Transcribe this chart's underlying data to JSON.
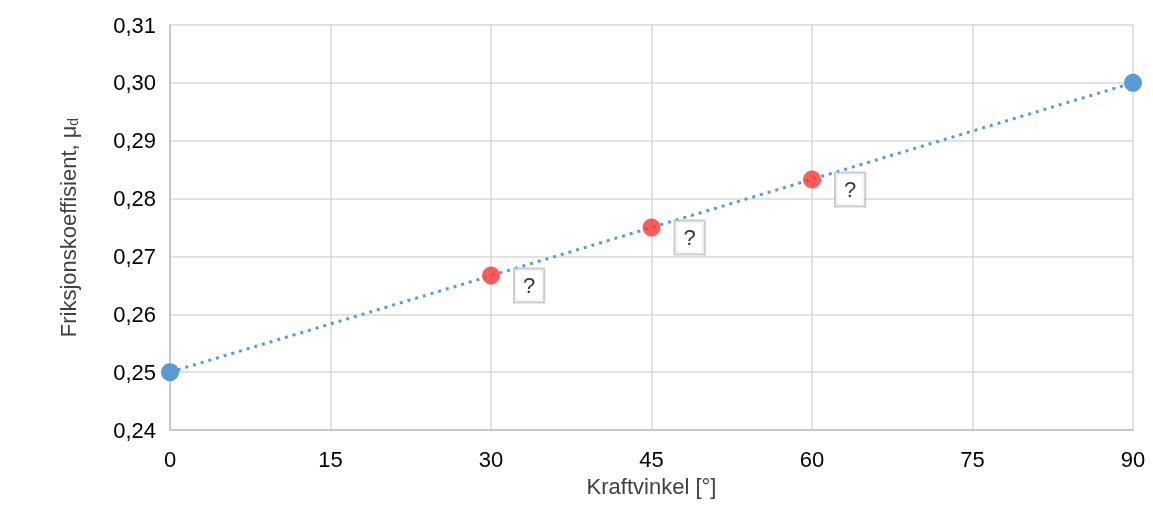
{
  "chart_data": {
    "type": "line",
    "xlabel": "Kraftvinkel [°]",
    "ylabel": "Friksjonskoeffisient, μ$_{d}$",
    "xlim": [
      0,
      90
    ],
    "xticks": [
      0,
      15,
      30,
      45,
      60,
      75,
      90
    ],
    "ylim": [
      0.24,
      0.31
    ],
    "yticks": [
      {
        "value": 0.24,
        "label": "0,24"
      },
      {
        "value": 0.25,
        "label": "0,25"
      },
      {
        "value": 0.26,
        "label": "0,26"
      },
      {
        "value": 0.27,
        "label": "0,27"
      },
      {
        "value": 0.28,
        "label": "0,28"
      },
      {
        "value": 0.29,
        "label": "0,29"
      },
      {
        "value": 0.3,
        "label": "0,30"
      },
      {
        "value": 0.31,
        "label": "0,31"
      }
    ],
    "grid": true,
    "legend": false,
    "series": [
      {
        "color": "#5b9bd5",
        "x": [
          0,
          90
        ],
        "values": [
          0.25,
          0.3
        ],
        "marker": "circle",
        "line_style": "dotted"
      },
      {
        "type": "scatter",
        "color": "#ff3333",
        "x": [
          30,
          45,
          60
        ],
        "values": [
          0.2667,
          0.275,
          0.2833
        ],
        "marker": "circle",
        "value_labels": [
          "?",
          "?",
          "?"
        ]
      }
    ]
  }
}
